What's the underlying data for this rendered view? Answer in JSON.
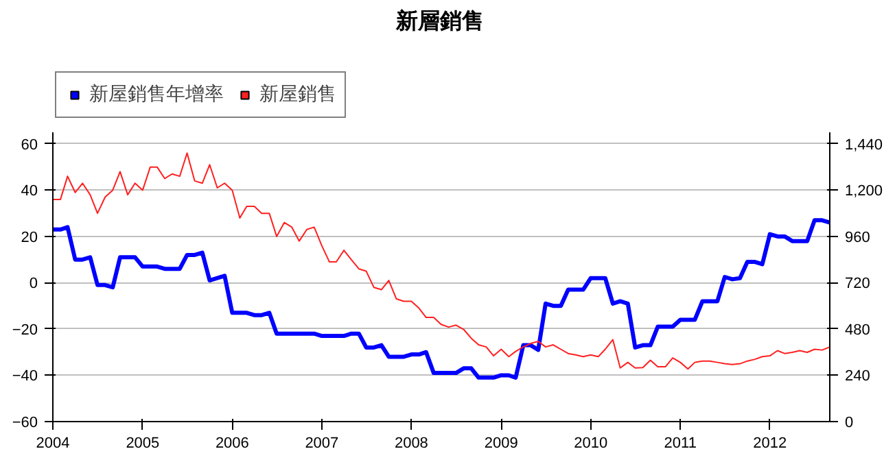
{
  "chart_data": {
    "type": "line",
    "title": "新層銷售",
    "x": [
      "2004-01",
      "2004-02",
      "2004-03",
      "2004-04",
      "2004-05",
      "2004-06",
      "2004-07",
      "2004-08",
      "2004-09",
      "2004-10",
      "2004-11",
      "2004-12",
      "2005-01",
      "2005-02",
      "2005-03",
      "2005-04",
      "2005-05",
      "2005-06",
      "2005-07",
      "2005-08",
      "2005-09",
      "2005-10",
      "2005-11",
      "2005-12",
      "2006-01",
      "2006-02",
      "2006-03",
      "2006-04",
      "2006-05",
      "2006-06",
      "2006-07",
      "2006-08",
      "2006-09",
      "2006-10",
      "2006-11",
      "2006-12",
      "2007-01",
      "2007-02",
      "2007-03",
      "2007-04",
      "2007-05",
      "2007-06",
      "2007-07",
      "2007-08",
      "2007-09",
      "2007-10",
      "2007-11",
      "2007-12",
      "2008-01",
      "2008-02",
      "2008-03",
      "2008-04",
      "2008-05",
      "2008-06",
      "2008-07",
      "2008-08",
      "2008-09",
      "2008-10",
      "2008-11",
      "2008-12",
      "2009-01",
      "2009-02",
      "2009-03",
      "2009-04",
      "2009-05",
      "2009-06",
      "2009-07",
      "2009-08",
      "2009-09",
      "2009-10",
      "2009-11",
      "2009-12",
      "2010-01",
      "2010-02",
      "2010-03",
      "2010-04",
      "2010-05",
      "2010-06",
      "2010-07",
      "2010-08",
      "2010-09",
      "2010-10",
      "2010-11",
      "2010-12",
      "2011-01",
      "2011-02",
      "2011-03",
      "2011-04",
      "2011-05",
      "2011-06",
      "2011-07",
      "2011-08",
      "2011-09",
      "2011-10",
      "2011-11",
      "2011-12",
      "2012-01",
      "2012-02",
      "2012-03",
      "2012-04",
      "2012-05",
      "2012-06",
      "2012-07",
      "2012-08",
      "2012-09"
    ],
    "series": [
      {
        "name": "新屋銷售年增率",
        "color": "#0000ff",
        "axis": "y",
        "values": [
          23,
          23,
          24,
          10,
          10,
          11,
          -1,
          -1,
          -2,
          11,
          11,
          11,
          7,
          7,
          7,
          6,
          6,
          6,
          12,
          12,
          13,
          1,
          2,
          3,
          -13,
          -13,
          -13,
          -14,
          -14,
          -13,
          -22,
          -22,
          -22,
          -22,
          -22,
          -22,
          -23,
          -23,
          -23,
          -23,
          -22,
          -22,
          -28,
          -28,
          -27,
          -32,
          -32,
          -32,
          -31,
          -31,
          -30,
          -39,
          -39,
          -39,
          -39,
          -37,
          -37,
          -41,
          -41,
          -41,
          -40,
          -40,
          -41,
          -27,
          -27,
          -29,
          -9,
          -10,
          -10,
          -3,
          -3,
          -3,
          2,
          2,
          2,
          -9,
          -8,
          -9,
          -28,
          -27,
          -27,
          -19,
          -19,
          -19,
          -16,
          -16,
          -16,
          -8,
          -8,
          -8,
          2.5,
          1.5,
          2,
          9,
          9,
          8,
          21,
          20,
          20,
          18,
          18,
          18,
          27,
          27,
          26
        ]
      },
      {
        "name": "新屋銷售",
        "color": "#ff2020",
        "axis": "y2",
        "values": [
          1152,
          1152,
          1272,
          1188,
          1236,
          1176,
          1080,
          1164,
          1200,
          1296,
          1176,
          1236,
          1200,
          1320,
          1320,
          1260,
          1284,
          1272,
          1392,
          1248,
          1236,
          1332,
          1212,
          1236,
          1200,
          1056,
          1116,
          1116,
          1080,
          1080,
          960,
          1032,
          1008,
          936,
          996,
          1008,
          912,
          828,
          828,
          888,
          840,
          792,
          780,
          696,
          684,
          732,
          636,
          624,
          624,
          588,
          540,
          540,
          504,
          490,
          500,
          478,
          432,
          398,
          387,
          341,
          375,
          337,
          364,
          387,
          405,
          416,
          387,
          398,
          375,
          353,
          346,
          337,
          346,
          337,
          375,
          425,
          278,
          307,
          278,
          280,
          318,
          284,
          284,
          330,
          307,
          273,
          307,
          314,
          314,
          307,
          300,
          296,
          300,
          314,
          323,
          337,
          341,
          368,
          353,
          359,
          368,
          359,
          375,
          371,
          387
        ]
      }
    ],
    "xlim": [
      "2004-01",
      "2012-09"
    ],
    "xticks": [
      "2004",
      "2005",
      "2006",
      "2007",
      "2008",
      "2009",
      "2010",
      "2011",
      "2012"
    ],
    "ylim": [
      -60,
      65
    ],
    "yticks": [
      -60,
      -40,
      -20,
      0,
      20,
      40,
      60
    ],
    "y2lim": [
      0,
      1500
    ],
    "y2ticks": [
      0,
      240,
      480,
      720,
      960,
      {
        "value": 1200,
        "label": "1,200"
      },
      {
        "value": 1440,
        "label": "1,440"
      }
    ],
    "grid": "y",
    "legend": "top left"
  }
}
